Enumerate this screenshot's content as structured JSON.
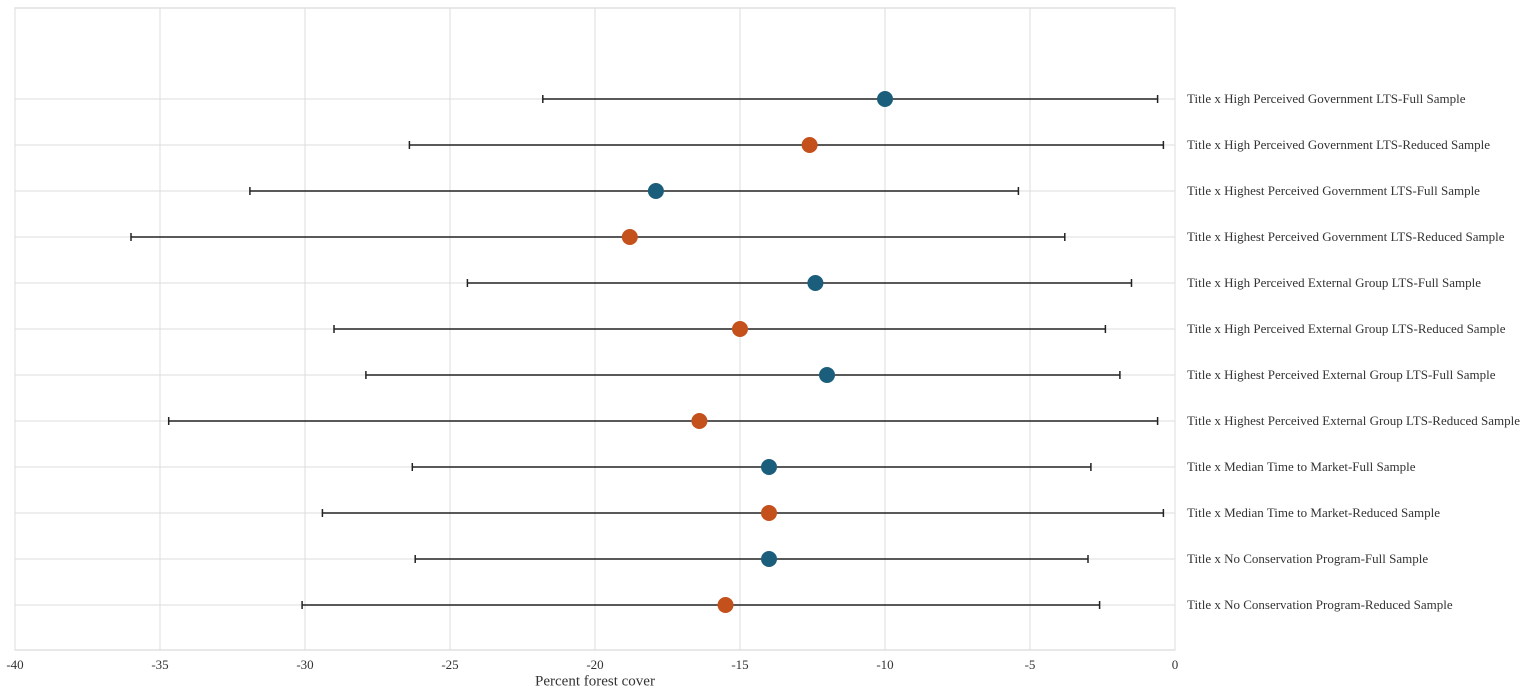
{
  "chart_data": {
    "type": "forest",
    "x_label": "Percent forest cover",
    "categories": [
      "Title x High Perceived Government LTS-Full Sample",
      "Title x High Perceived Government LTS-Reduced Sample",
      "Title x Highest Perceived Government LTS-Full Sample",
      "Title x Highest Perceived Government LTS-Reduced Sample",
      "Title x High Perceived External Group LTS-Full Sample",
      "Title x High Perceived External Group LTS-Reduced Sample",
      "Title x Highest Perceived External Group LTS-Full Sample",
      "Title x Highest Perceived External Group LTS-Reduced Sample",
      "Title x Median Time to Market-Full Sample",
      "Title x Median Time to Market-Reduced Sample",
      "Title x No Conservation Program-Full Sample",
      "Title x No Conservation Program-Reduced Sample"
    ],
    "values": [
      -10.0,
      -12.6,
      -17.9,
      -18.8,
      -12.4,
      -15.0,
      -12.0,
      -16.4,
      -14.0,
      -14.0,
      -14.0,
      -15.5
    ],
    "lower": [
      -21.8,
      -26.4,
      -31.9,
      -36.0,
      -24.4,
      -29.0,
      -27.9,
      -34.7,
      -26.3,
      -29.4,
      -26.2,
      -30.1
    ],
    "upper": [
      -0.6,
      -0.4,
      -5.4,
      -3.8,
      -1.5,
      -2.4,
      -1.9,
      -0.6,
      -2.9,
      -0.4,
      -3.0,
      -2.6
    ],
    "colors": [
      "#1b5e7b",
      "#c4501b",
      "#1b5e7b",
      "#c4501b",
      "#1b5e7b",
      "#c4501b",
      "#1b5e7b",
      "#c4501b",
      "#1b5e7b",
      "#c4501b",
      "#1b5e7b",
      "#c4501b"
    ],
    "xlim": [
      -40,
      0
    ],
    "xticks": [
      -40,
      -35,
      -30,
      -25,
      -20,
      -15,
      -10,
      -5,
      0
    ],
    "grid": true
  }
}
